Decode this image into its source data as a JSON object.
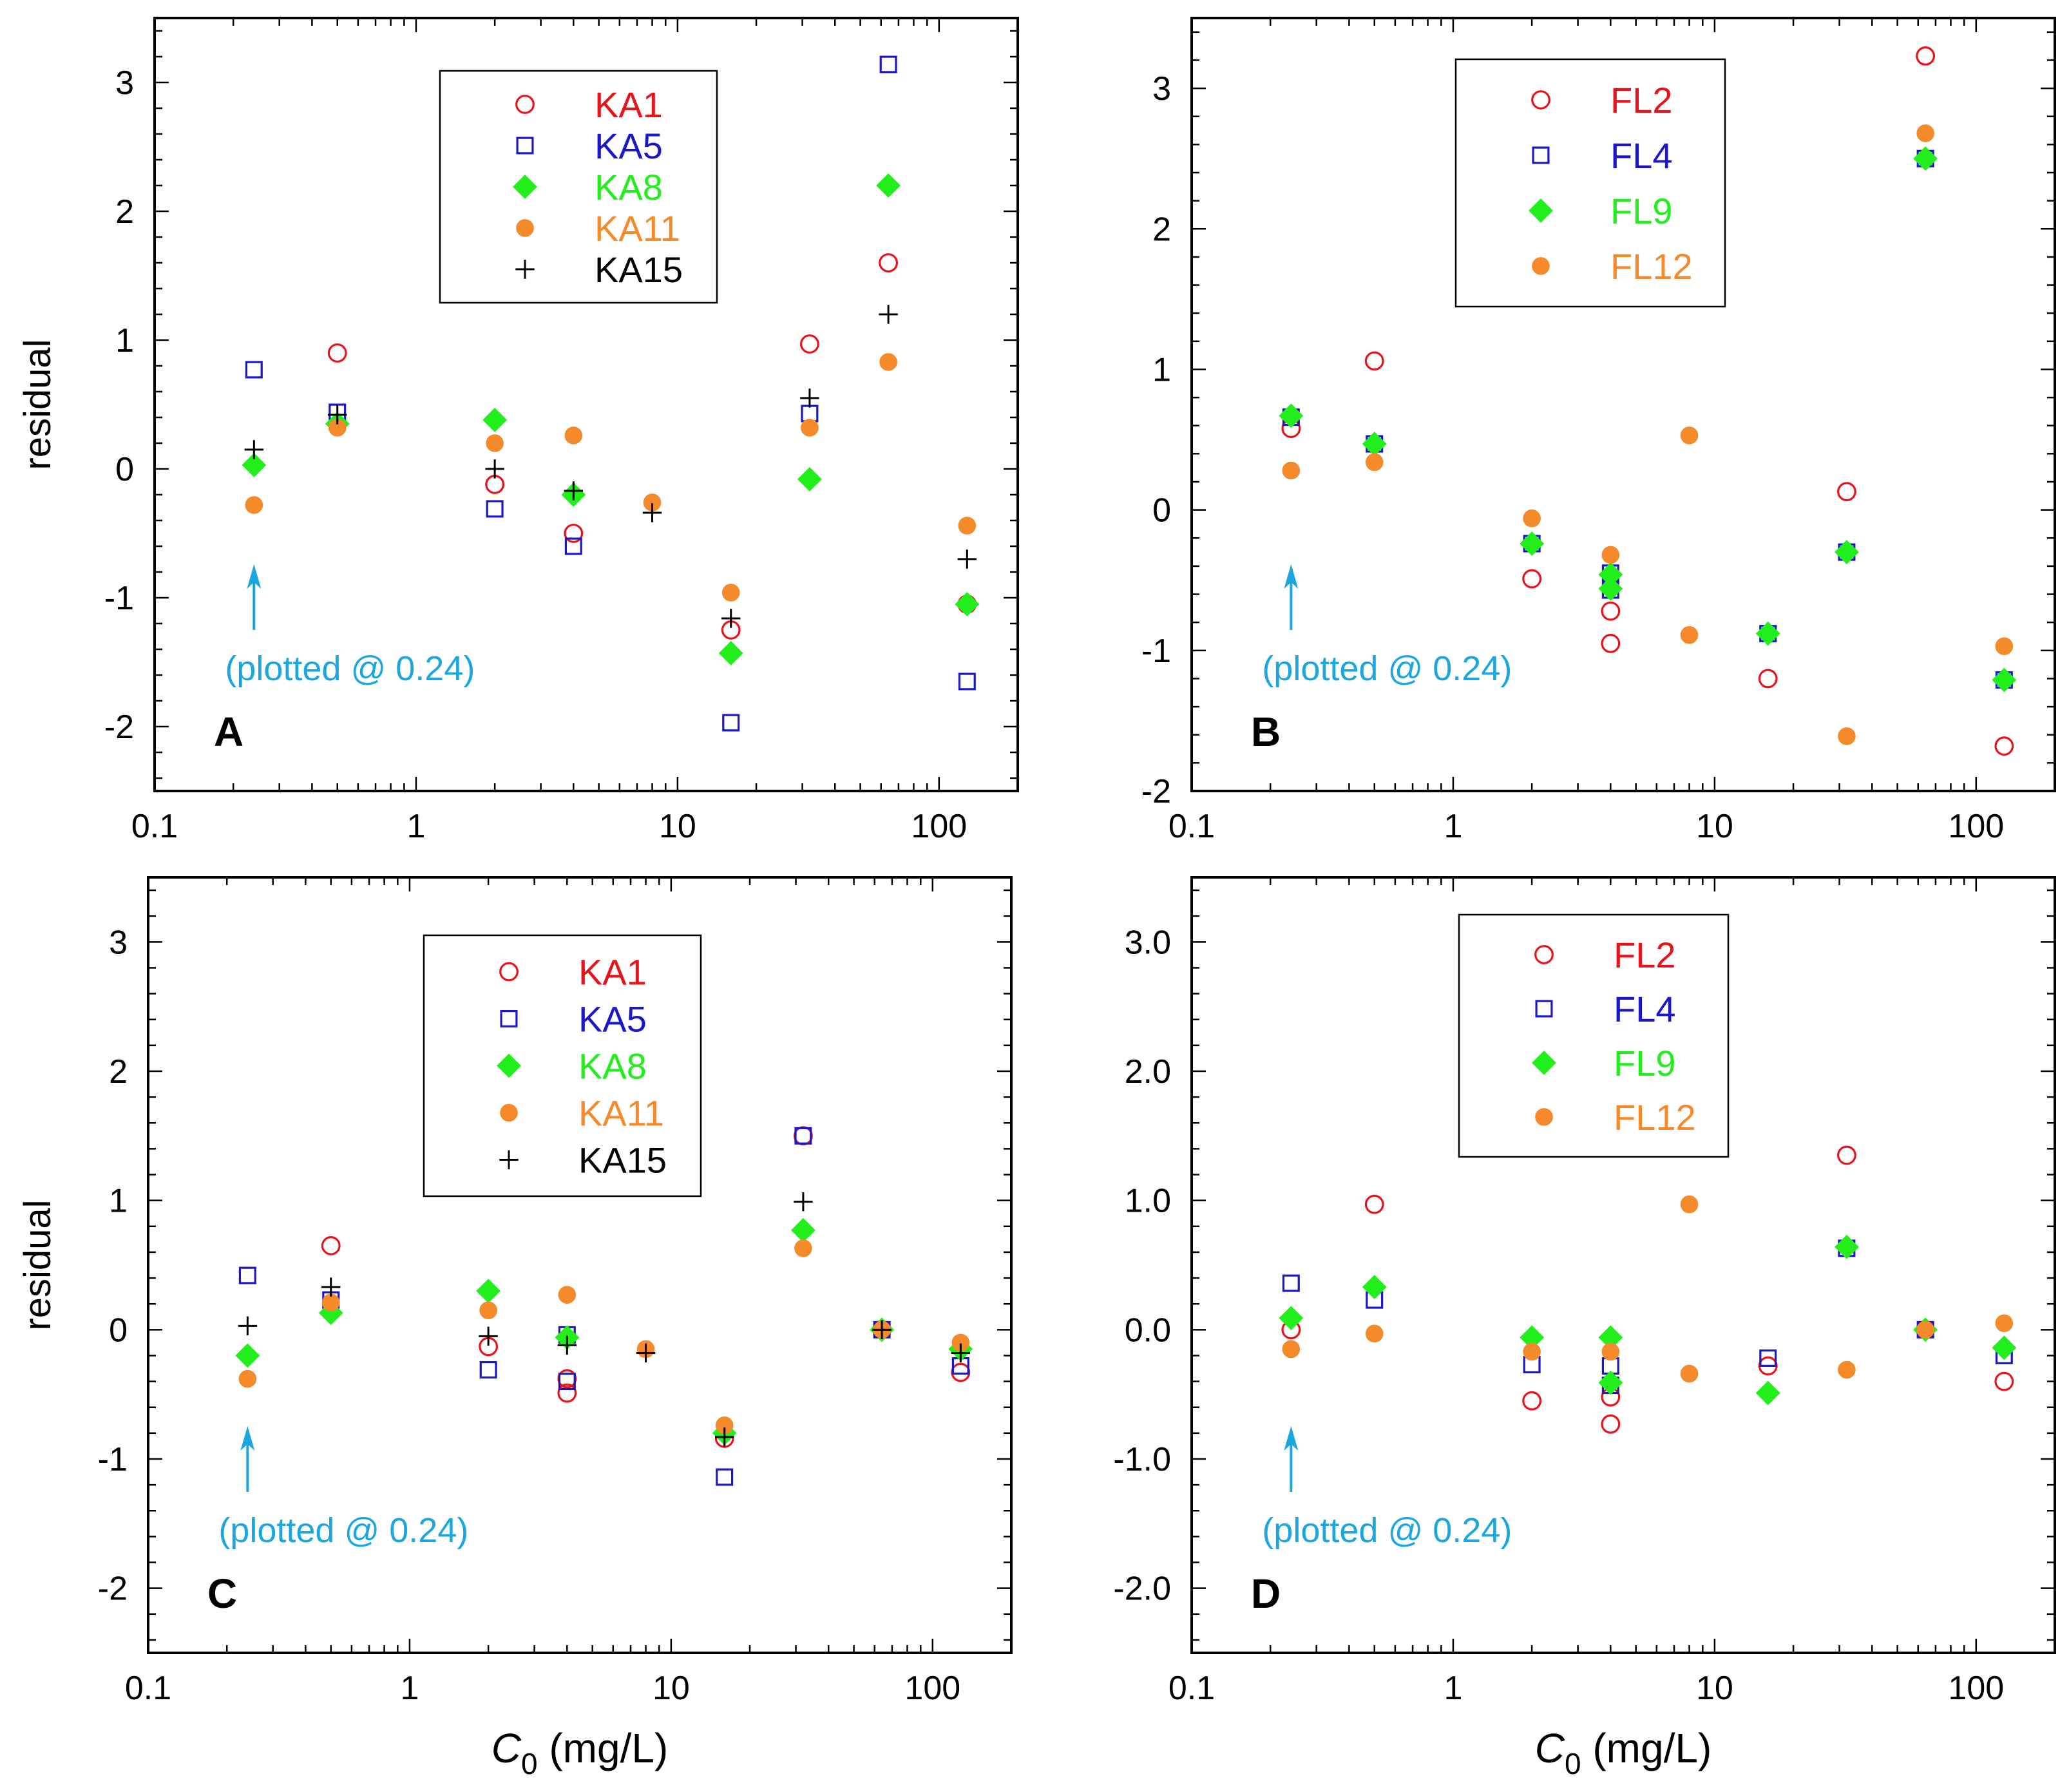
{
  "figure": {
    "shared_ylabel": "residual",
    "shared_xlabel_main": "C",
    "shared_xlabel_sub": "0",
    "shared_xlabel_unit": " (mg/L)",
    "arrow_note": "(plotted @ 0.24)",
    "colors": {
      "red": "#e8131a",
      "blue": "#1b17c8",
      "green": "#22ee1c",
      "orange": "#f58a2a",
      "black": "#000000",
      "arrow": "#1ba6e0"
    }
  },
  "chart_data": [
    {
      "panel": "A",
      "type": "scatter",
      "xscale": "log",
      "xlim": [
        0.1,
        200
      ],
      "ylim": [
        -2.5,
        3.5
      ],
      "yticks": [
        -2,
        -1,
        0,
        1,
        2,
        3
      ],
      "ytick_labels": [
        "-2",
        "-1",
        "0",
        "1",
        "2",
        "3"
      ],
      "xticks": [
        0.1,
        1,
        10,
        100
      ],
      "xtick_labels": [
        "0.1",
        "1",
        "10",
        "100"
      ],
      "ylabel": "residual",
      "xlabel": "",
      "annotation": "(plotted @ 0.24)",
      "legend_position": "top-center",
      "series": [
        {
          "name": "KA1",
          "marker": "circle-open",
          "color": "red",
          "points": [
            [
              0.5,
              0.9
            ],
            [
              2,
              -0.12
            ],
            [
              4,
              -0.5
            ],
            [
              16,
              -1.25
            ],
            [
              32,
              0.97
            ],
            [
              64,
              1.6
            ],
            [
              128,
              -1.05
            ]
          ]
        },
        {
          "name": "KA5",
          "marker": "square-open",
          "color": "blue",
          "points": [
            [
              0.24,
              0.77
            ],
            [
              0.5,
              0.44
            ],
            [
              2,
              -0.31
            ],
            [
              4,
              -0.6
            ],
            [
              16,
              -1.97
            ],
            [
              32,
              0.43
            ],
            [
              64,
              3.14
            ],
            [
              128,
              -1.65
            ]
          ]
        },
        {
          "name": "KA8",
          "marker": "diamond-filled",
          "color": "green",
          "points": [
            [
              0.24,
              0.03
            ],
            [
              0.5,
              0.35
            ],
            [
              2,
              0.38
            ],
            [
              4,
              -0.2
            ],
            [
              16,
              -1.43
            ],
            [
              32,
              -0.08
            ],
            [
              64,
              2.2
            ],
            [
              128,
              -1.05
            ]
          ]
        },
        {
          "name": "KA11",
          "marker": "circle-filled",
          "color": "orange",
          "points": [
            [
              0.24,
              -0.28
            ],
            [
              0.5,
              0.32
            ],
            [
              2,
              0.2
            ],
            [
              4,
              0.26
            ],
            [
              8,
              -0.26
            ],
            [
              16,
              -0.96
            ],
            [
              32,
              0.32
            ],
            [
              64,
              0.83
            ],
            [
              128,
              -0.44
            ]
          ]
        },
        {
          "name": "KA15",
          "marker": "plus",
          "color": "black",
          "points": [
            [
              0.24,
              0.15
            ],
            [
              0.5,
              0.42
            ],
            [
              2,
              0.0
            ],
            [
              4,
              -0.17
            ],
            [
              8,
              -0.34
            ],
            [
              16,
              -1.16
            ],
            [
              32,
              0.55
            ],
            [
              64,
              1.2
            ],
            [
              128,
              -0.7
            ]
          ]
        }
      ]
    },
    {
      "panel": "B",
      "type": "scatter",
      "xscale": "log",
      "xlim": [
        0.1,
        200
      ],
      "ylim": [
        -2,
        3.5
      ],
      "yticks": [
        -2,
        -1,
        0,
        1,
        2,
        3
      ],
      "ytick_labels": [
        "-2",
        "-1",
        "0",
        "1",
        "2",
        "3"
      ],
      "xticks": [
        0.1,
        1,
        10,
        100
      ],
      "xtick_labels": [
        "0.1",
        "1",
        "10",
        "100"
      ],
      "ylabel": "",
      "xlabel": "",
      "annotation": "(plotted @ 0.24)",
      "legend_position": "top-center",
      "series": [
        {
          "name": "FL2",
          "marker": "circle-open",
          "color": "red",
          "points": [
            [
              0.24,
              0.58
            ],
            [
              0.5,
              1.06
            ],
            [
              2,
              -0.49
            ],
            [
              4,
              -0.72
            ],
            [
              4,
              -0.95
            ],
            [
              16,
              -1.2
            ],
            [
              32,
              0.13
            ],
            [
              64,
              3.23
            ],
            [
              128,
              -1.68
            ]
          ]
        },
        {
          "name": "FL4",
          "marker": "square-open",
          "color": "blue",
          "points": [
            [
              0.24,
              0.66
            ],
            [
              0.5,
              0.47
            ],
            [
              2,
              -0.24
            ],
            [
              4,
              -0.45
            ],
            [
              4,
              -0.57
            ],
            [
              16,
              -0.88
            ],
            [
              32,
              -0.3
            ],
            [
              64,
              2.5
            ],
            [
              128,
              -1.21
            ]
          ]
        },
        {
          "name": "FL9",
          "marker": "diamond-filled",
          "color": "green",
          "points": [
            [
              0.24,
              0.67
            ],
            [
              0.5,
              0.47
            ],
            [
              2,
              -0.24
            ],
            [
              4,
              -0.46
            ],
            [
              4,
              -0.56
            ],
            [
              16,
              -0.88
            ],
            [
              32,
              -0.3
            ],
            [
              64,
              2.5
            ],
            [
              128,
              -1.21
            ]
          ]
        },
        {
          "name": "FL12",
          "marker": "circle-filled",
          "color": "orange",
          "points": [
            [
              0.24,
              0.28
            ],
            [
              0.5,
              0.34
            ],
            [
              2,
              -0.06
            ],
            [
              4,
              -0.32
            ],
            [
              8,
              0.53
            ],
            [
              8,
              -0.89
            ],
            [
              32,
              -1.61
            ],
            [
              64,
              2.68
            ],
            [
              128,
              -0.97
            ]
          ]
        }
      ]
    },
    {
      "panel": "C",
      "type": "scatter",
      "xscale": "log",
      "xlim": [
        0.1,
        200
      ],
      "ylim": [
        -2.5,
        3.5
      ],
      "yticks": [
        -2,
        -1,
        0,
        1,
        2,
        3
      ],
      "ytick_labels": [
        "-2",
        "-1",
        "0",
        "1",
        "2",
        "3"
      ],
      "xticks": [
        0.1,
        1,
        10,
        100
      ],
      "xtick_labels": [
        "0.1",
        "1",
        "10",
        "100"
      ],
      "ylabel": "residual",
      "xlabel": "C0 (mg/L)",
      "annotation": "(plotted @ 0.24)",
      "legend_position": "top-center",
      "series": [
        {
          "name": "KA1",
          "marker": "circle-open",
          "color": "red",
          "points": [
            [
              0.5,
              0.65
            ],
            [
              2,
              -0.13
            ],
            [
              4,
              -0.38
            ],
            [
              4,
              -0.49
            ],
            [
              16,
              -0.84
            ],
            [
              32,
              1.5
            ],
            [
              64,
              0.0
            ],
            [
              128,
              -0.33
            ]
          ]
        },
        {
          "name": "KA5",
          "marker": "square-open",
          "color": "blue",
          "points": [
            [
              0.24,
              0.42
            ],
            [
              0.5,
              0.23
            ],
            [
              2,
              -0.31
            ],
            [
              4,
              -0.04
            ],
            [
              4,
              -0.4
            ],
            [
              16,
              -1.14
            ],
            [
              32,
              1.5
            ],
            [
              64,
              0.0
            ],
            [
              128,
              -0.28
            ]
          ]
        },
        {
          "name": "KA8",
          "marker": "diamond-filled",
          "color": "green",
          "points": [
            [
              0.24,
              -0.2
            ],
            [
              0.5,
              0.13
            ],
            [
              2,
              0.3
            ],
            [
              4,
              -0.06
            ],
            [
              16,
              -0.8
            ],
            [
              32,
              0.77
            ],
            [
              64,
              0.0
            ],
            [
              128,
              -0.15
            ]
          ]
        },
        {
          "name": "KA11",
          "marker": "circle-filled",
          "color": "orange",
          "points": [
            [
              0.24,
              -0.38
            ],
            [
              0.5,
              0.21
            ],
            [
              2,
              0.15
            ],
            [
              4,
              0.27
            ],
            [
              8,
              -0.15
            ],
            [
              16,
              -0.74
            ],
            [
              32,
              0.63
            ],
            [
              64,
              0.0
            ],
            [
              128,
              -0.1
            ]
          ]
        },
        {
          "name": "KA15",
          "marker": "plus",
          "color": "black",
          "points": [
            [
              0.24,
              0.03
            ],
            [
              0.5,
              0.33
            ],
            [
              2,
              -0.05
            ],
            [
              4,
              -0.12
            ],
            [
              8,
              -0.18
            ],
            [
              16,
              -0.83
            ],
            [
              32,
              0.99
            ],
            [
              64,
              0.0
            ],
            [
              128,
              -0.18
            ]
          ]
        }
      ]
    },
    {
      "panel": "D",
      "type": "scatter",
      "xscale": "log",
      "xlim": [
        0.1,
        200
      ],
      "ylim": [
        -2.5,
        3.5
      ],
      "yticks": [
        -2,
        -1,
        0,
        1,
        2,
        3
      ],
      "ytick_labels": [
        "-2.0",
        "-1.0",
        "0.0",
        "1.0",
        "2.0",
        "3.0"
      ],
      "xticks": [
        0.1,
        1,
        10,
        100
      ],
      "xtick_labels": [
        "0.1",
        "1",
        "10",
        "100"
      ],
      "ylabel": "",
      "xlabel": "C0 (mg/L)",
      "annotation": "(plotted @ 0.24)",
      "legend_position": "top-center",
      "series": [
        {
          "name": "FL2",
          "marker": "circle-open",
          "color": "red",
          "points": [
            [
              0.24,
              0.0
            ],
            [
              0.5,
              0.97
            ],
            [
              2,
              -0.55
            ],
            [
              4,
              -0.52
            ],
            [
              4,
              -0.73
            ],
            [
              16,
              -0.28
            ],
            [
              32,
              1.35
            ],
            [
              64,
              0.0
            ],
            [
              128,
              -0.4
            ]
          ]
        },
        {
          "name": "FL4",
          "marker": "square-open",
          "color": "blue",
          "points": [
            [
              0.24,
              0.36
            ],
            [
              0.5,
              0.23
            ],
            [
              2,
              -0.27
            ],
            [
              4,
              -0.28
            ],
            [
              4,
              -0.43
            ],
            [
              16,
              -0.22
            ],
            [
              32,
              0.63
            ],
            [
              64,
              0.0
            ],
            [
              128,
              -0.2
            ]
          ]
        },
        {
          "name": "FL9",
          "marker": "diamond-filled",
          "color": "green",
          "points": [
            [
              0.24,
              0.09
            ],
            [
              0.5,
              0.33
            ],
            [
              2,
              -0.06
            ],
            [
              4,
              -0.06
            ],
            [
              4,
              -0.41
            ],
            [
              16,
              -0.49
            ],
            [
              32,
              0.64
            ],
            [
              64,
              0.0
            ],
            [
              128,
              -0.14
            ]
          ]
        },
        {
          "name": "FL12",
          "marker": "circle-filled",
          "color": "orange",
          "points": [
            [
              0.24,
              -0.15
            ],
            [
              0.5,
              -0.03
            ],
            [
              2,
              -0.17
            ],
            [
              4,
              -0.17
            ],
            [
              8,
              0.97
            ],
            [
              8,
              -0.34
            ],
            [
              32,
              -0.31
            ],
            [
              64,
              0.0
            ],
            [
              128,
              0.05
            ]
          ]
        }
      ]
    }
  ]
}
